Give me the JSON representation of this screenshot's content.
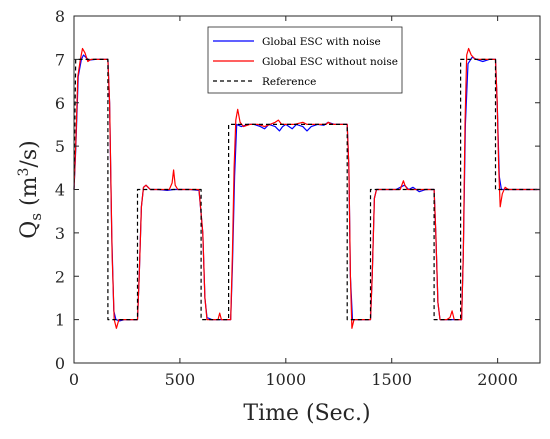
{
  "chart_data": {
    "type": "line",
    "xlabel": "Time (Sec.)",
    "ylabel": {
      "base": "Q",
      "subscript": "s",
      "unit_open": " (m",
      "unit_sup": "3",
      "unit_close": "/s)"
    },
    "xlim": [
      0,
      2200
    ],
    "ylim": [
      0,
      8
    ],
    "xticks": [
      0,
      500,
      1000,
      1500,
      2000
    ],
    "yticks": [
      0,
      1,
      2,
      3,
      4,
      5,
      6,
      7,
      8
    ],
    "grid": false,
    "legend_position": "top-center",
    "series": [
      {
        "name": "Global ESC with noise",
        "color": "#0000ff",
        "style": "solid",
        "points": [
          [
            0,
            4.0
          ],
          [
            8,
            4.9
          ],
          [
            20,
            6.6
          ],
          [
            35,
            7.0
          ],
          [
            45,
            7.1
          ],
          [
            55,
            7.05
          ],
          [
            70,
            6.98
          ],
          [
            100,
            7.0
          ],
          [
            130,
            7.0
          ],
          [
            160,
            7.0
          ],
          [
            168,
            6.0
          ],
          [
            178,
            3.0
          ],
          [
            188,
            1.2
          ],
          [
            198,
            1.0
          ],
          [
            215,
            0.97
          ],
          [
            240,
            1.0
          ],
          [
            270,
            1.0
          ],
          [
            300,
            1.0
          ],
          [
            308,
            2.0
          ],
          [
            318,
            3.6
          ],
          [
            328,
            4.05
          ],
          [
            340,
            4.1
          ],
          [
            360,
            4.0
          ],
          [
            400,
            4.0
          ],
          [
            440,
            3.98
          ],
          [
            470,
            4.0
          ],
          [
            500,
            4.0
          ],
          [
            550,
            4.0
          ],
          [
            590,
            3.98
          ],
          [
            608,
            3.0
          ],
          [
            618,
            1.5
          ],
          [
            628,
            1.05
          ],
          [
            650,
            1.0
          ],
          [
            690,
            1.0
          ],
          [
            740,
            1.0
          ],
          [
            748,
            2.2
          ],
          [
            758,
            4.3
          ],
          [
            768,
            5.5
          ],
          [
            790,
            5.45
          ],
          [
            820,
            5.5
          ],
          [
            850,
            5.5
          ],
          [
            880,
            5.45
          ],
          [
            900,
            5.4
          ],
          [
            920,
            5.5
          ],
          [
            950,
            5.45
          ],
          [
            970,
            5.35
          ],
          [
            985,
            5.45
          ],
          [
            1000,
            5.5
          ],
          [
            1030,
            5.4
          ],
          [
            1050,
            5.5
          ],
          [
            1080,
            5.45
          ],
          [
            1100,
            5.35
          ],
          [
            1120,
            5.45
          ],
          [
            1150,
            5.5
          ],
          [
            1180,
            5.48
          ],
          [
            1200,
            5.55
          ],
          [
            1230,
            5.5
          ],
          [
            1270,
            5.5
          ],
          [
            1290,
            5.5
          ],
          [
            1298,
            4.5
          ],
          [
            1305,
            2.0
          ],
          [
            1315,
            1.0
          ],
          [
            1340,
            1.0
          ],
          [
            1400,
            1.0
          ],
          [
            1408,
            2.0
          ],
          [
            1418,
            3.8
          ],
          [
            1428,
            4.0
          ],
          [
            1470,
            4.0
          ],
          [
            1520,
            4.0
          ],
          [
            1560,
            4.1
          ],
          [
            1580,
            4.0
          ],
          [
            1600,
            4.05
          ],
          [
            1630,
            3.95
          ],
          [
            1660,
            4.0
          ],
          [
            1700,
            4.0
          ],
          [
            1708,
            3.0
          ],
          [
            1718,
            1.4
          ],
          [
            1728,
            1.0
          ],
          [
            1760,
            1.0
          ],
          [
            1800,
            1.0
          ],
          [
            1830,
            1.0
          ],
          [
            1838,
            2.5
          ],
          [
            1848,
            5.5
          ],
          [
            1860,
            6.9
          ],
          [
            1880,
            7.05
          ],
          [
            1900,
            7.0
          ],
          [
            1930,
            6.95
          ],
          [
            1960,
            7.0
          ],
          [
            1990,
            7.0
          ],
          [
            1998,
            6.0
          ],
          [
            2008,
            4.3
          ],
          [
            2018,
            4.0
          ],
          [
            2060,
            4.0
          ],
          [
            2120,
            4.0
          ],
          [
            2200,
            4.0
          ]
        ]
      },
      {
        "name": "Global ESC without noise",
        "color": "#ff0000",
        "style": "solid",
        "points": [
          [
            0,
            4.0
          ],
          [
            8,
            5.0
          ],
          [
            18,
            6.6
          ],
          [
            30,
            7.0
          ],
          [
            40,
            7.25
          ],
          [
            52,
            7.15
          ],
          [
            65,
            6.95
          ],
          [
            80,
            7.0
          ],
          [
            120,
            7.0
          ],
          [
            160,
            7.0
          ],
          [
            168,
            6.0
          ],
          [
            180,
            2.5
          ],
          [
            190,
            1.0
          ],
          [
            200,
            0.8
          ],
          [
            212,
            1.0
          ],
          [
            230,
            1.0
          ],
          [
            270,
            1.0
          ],
          [
            300,
            1.0
          ],
          [
            308,
            2.0
          ],
          [
            318,
            3.6
          ],
          [
            328,
            4.05
          ],
          [
            340,
            4.1
          ],
          [
            360,
            4.0
          ],
          [
            400,
            4.0
          ],
          [
            450,
            4.0
          ],
          [
            463,
            4.15
          ],
          [
            470,
            4.45
          ],
          [
            478,
            4.1
          ],
          [
            490,
            4.0
          ],
          [
            540,
            4.0
          ],
          [
            590,
            4.0
          ],
          [
            608,
            3.0
          ],
          [
            618,
            1.5
          ],
          [
            628,
            1.0
          ],
          [
            650,
            1.0
          ],
          [
            680,
            1.0
          ],
          [
            688,
            1.15
          ],
          [
            696,
            1.0
          ],
          [
            740,
            1.0
          ],
          [
            748,
            2.5
          ],
          [
            756,
            4.5
          ],
          [
            764,
            5.6
          ],
          [
            773,
            5.85
          ],
          [
            784,
            5.55
          ],
          [
            800,
            5.45
          ],
          [
            830,
            5.5
          ],
          [
            870,
            5.5
          ],
          [
            900,
            5.45
          ],
          [
            925,
            5.5
          ],
          [
            950,
            5.55
          ],
          [
            965,
            5.6
          ],
          [
            980,
            5.5
          ],
          [
            1000,
            5.5
          ],
          [
            1040,
            5.5
          ],
          [
            1080,
            5.55
          ],
          [
            1100,
            5.5
          ],
          [
            1150,
            5.5
          ],
          [
            1190,
            5.5
          ],
          [
            1200,
            5.55
          ],
          [
            1220,
            5.5
          ],
          [
            1270,
            5.5
          ],
          [
            1290,
            5.5
          ],
          [
            1298,
            4.5
          ],
          [
            1305,
            2.0
          ],
          [
            1312,
            0.8
          ],
          [
            1322,
            1.0
          ],
          [
            1340,
            1.0
          ],
          [
            1400,
            1.0
          ],
          [
            1408,
            2.0
          ],
          [
            1418,
            3.8
          ],
          [
            1428,
            4.0
          ],
          [
            1470,
            4.0
          ],
          [
            1540,
            4.0
          ],
          [
            1555,
            4.2
          ],
          [
            1562,
            4.1
          ],
          [
            1575,
            4.0
          ],
          [
            1640,
            4.0
          ],
          [
            1700,
            4.0
          ],
          [
            1708,
            3.0
          ],
          [
            1718,
            1.4
          ],
          [
            1728,
            1.0
          ],
          [
            1760,
            1.0
          ],
          [
            1775,
            1.05
          ],
          [
            1785,
            1.2
          ],
          [
            1795,
            1.0
          ],
          [
            1830,
            1.0
          ],
          [
            1838,
            2.5
          ],
          [
            1846,
            5.5
          ],
          [
            1854,
            7.1
          ],
          [
            1863,
            7.25
          ],
          [
            1875,
            7.1
          ],
          [
            1895,
            7.0
          ],
          [
            1930,
            7.0
          ],
          [
            1960,
            7.0
          ],
          [
            1990,
            7.0
          ],
          [
            1998,
            6.0
          ],
          [
            2005,
            4.5
          ],
          [
            2012,
            3.6
          ],
          [
            2022,
            3.9
          ],
          [
            2035,
            4.05
          ],
          [
            2050,
            4.0
          ],
          [
            2100,
            4.0
          ],
          [
            2200,
            4.0
          ]
        ]
      },
      {
        "name": "Reference",
        "color": "#000000",
        "style": "dashed",
        "points": [
          [
            0,
            4
          ],
          [
            8,
            7
          ],
          [
            160,
            7
          ],
          [
            160,
            1
          ],
          [
            300,
            1
          ],
          [
            300,
            4
          ],
          [
            600,
            4
          ],
          [
            600,
            1
          ],
          [
            730,
            1
          ],
          [
            730,
            5.5
          ],
          [
            1290,
            5.5
          ],
          [
            1290,
            1
          ],
          [
            1400,
            1
          ],
          [
            1400,
            4
          ],
          [
            1700,
            4
          ],
          [
            1700,
            1
          ],
          [
            1825,
            1
          ],
          [
            1825,
            7
          ],
          [
            1990,
            7
          ],
          [
            1990,
            4
          ],
          [
            2200,
            4
          ]
        ]
      }
    ]
  }
}
